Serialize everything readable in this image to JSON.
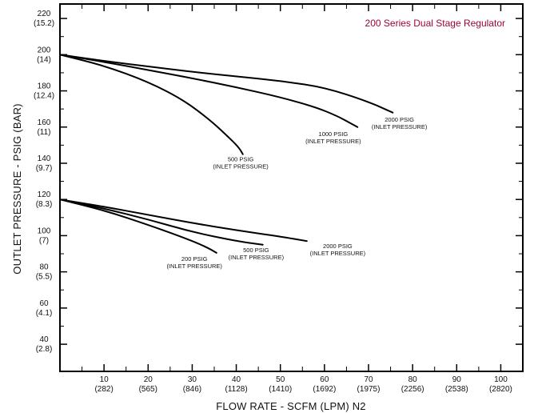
{
  "chart_data": {
    "type": "line",
    "title": "200 Series Dual Stage Regulator",
    "title_color": "#a0003c",
    "xlabel": "FLOW RATE - SCFM (LPM) N2",
    "ylabel": "OUTLET PRESSURE - PSIG (BAR)",
    "xlim": [
      0,
      105
    ],
    "ylim": [
      25,
      228
    ],
    "x_ticks": [
      {
        "value": 10,
        "line1": "10",
        "line2": "(282)"
      },
      {
        "value": 20,
        "line1": "20",
        "line2": "(565)"
      },
      {
        "value": 30,
        "line1": "30",
        "line2": "(846)"
      },
      {
        "value": 40,
        "line1": "40",
        "line2": "(1128)"
      },
      {
        "value": 50,
        "line1": "50",
        "line2": "(1410)"
      },
      {
        "value": 60,
        "line1": "60",
        "line2": "(1692)"
      },
      {
        "value": 70,
        "line1": "70",
        "line2": "(1975)"
      },
      {
        "value": 80,
        "line1": "80",
        "line2": "(2256)"
      },
      {
        "value": 90,
        "line1": "90",
        "line2": "(2538)"
      },
      {
        "value": 100,
        "line1": "100",
        "line2": "(2820)"
      }
    ],
    "y_ticks": [
      {
        "value": 40,
        "line1": "40",
        "line2": "(2.8)"
      },
      {
        "value": 60,
        "line1": "60",
        "line2": "(4.1)"
      },
      {
        "value": 80,
        "line1": "80",
        "line2": "(5.5)"
      },
      {
        "value": 100,
        "line1": "100",
        "line2": "(7)"
      },
      {
        "value": 120,
        "line1": "120",
        "line2": "(8.3)"
      },
      {
        "value": 140,
        "line1": "140",
        "line2": "(9.7)"
      },
      {
        "value": 160,
        "line1": "160",
        "line2": "(11)"
      },
      {
        "value": 180,
        "line1": "180",
        "line2": "(12.4)"
      },
      {
        "value": 200,
        "line1": "200",
        "line2": "(14)"
      },
      {
        "value": 220,
        "line1": "220",
        "line2": "(15.2)"
      }
    ],
    "series": [
      {
        "name": "500 PSIG (INLET PRESSURE)",
        "label_line1": "500 PSIG",
        "label_line2": "(INLET PRESSURE)",
        "label_at": [
          41,
          141
        ],
        "points": [
          [
            0,
            200
          ],
          [
            10,
            194
          ],
          [
            20,
            185
          ],
          [
            28,
            175
          ],
          [
            34,
            164
          ],
          [
            38,
            155
          ],
          [
            40.5,
            149
          ],
          [
            41.5,
            145
          ]
        ]
      },
      {
        "name": "1000 PSIG (INLET PRESSURE)",
        "label_line1": "1000 PSIG",
        "label_line2": "(INLET PRESSURE)",
        "label_at": [
          62,
          155
        ],
        "points": [
          [
            0,
            200
          ],
          [
            10,
            196
          ],
          [
            20,
            191.5
          ],
          [
            30,
            187
          ],
          [
            40,
            182
          ],
          [
            50,
            176.5
          ],
          [
            58,
            171
          ],
          [
            63,
            166
          ],
          [
            66,
            162
          ],
          [
            67.5,
            160
          ]
        ]
      },
      {
        "name": "2000 PSIG (INLET PRESSURE)",
        "label_line1": "2000 PSIG",
        "label_line2": "(INLET PRESSURE)",
        "label_at": [
          77,
          163
        ],
        "points": [
          [
            0,
            200
          ],
          [
            10,
            196.5
          ],
          [
            20,
            193.5
          ],
          [
            30,
            190.5
          ],
          [
            40,
            188
          ],
          [
            50,
            185.5
          ],
          [
            60,
            182
          ],
          [
            70,
            174
          ],
          [
            75.5,
            168
          ]
        ]
      },
      {
        "name": "200 PSIG (INLET PRESSURE)",
        "label_line1": "200 PSIG",
        "label_line2": "(INLET PRESSURE)",
        "label_at": [
          30.5,
          86
        ],
        "points": [
          [
            0,
            120
          ],
          [
            10,
            114
          ],
          [
            20,
            106
          ],
          [
            28,
            99
          ],
          [
            33,
            94
          ],
          [
            35.5,
            90.5
          ]
        ]
      },
      {
        "name": "500 PSIG (INLET PRESSURE)",
        "label_line1": "500 PSIG",
        "label_line2": "(INLET PRESSURE)",
        "label_at": [
          44.5,
          91
        ],
        "points": [
          [
            0,
            120
          ],
          [
            10,
            115
          ],
          [
            20,
            109
          ],
          [
            30,
            102
          ],
          [
            40,
            97
          ],
          [
            46,
            95
          ]
        ]
      },
      {
        "name": "2000 PSIG (INLET PRESSURE)",
        "label_line1": "2000 PSIG",
        "label_line2": "(INLET PRESSURE)",
        "label_at": [
          63,
          93
        ],
        "points": [
          [
            0,
            120
          ],
          [
            10,
            116
          ],
          [
            20,
            111.5
          ],
          [
            30,
            107
          ],
          [
            40,
            103
          ],
          [
            50,
            99.5
          ],
          [
            56,
            97
          ]
        ]
      }
    ]
  }
}
